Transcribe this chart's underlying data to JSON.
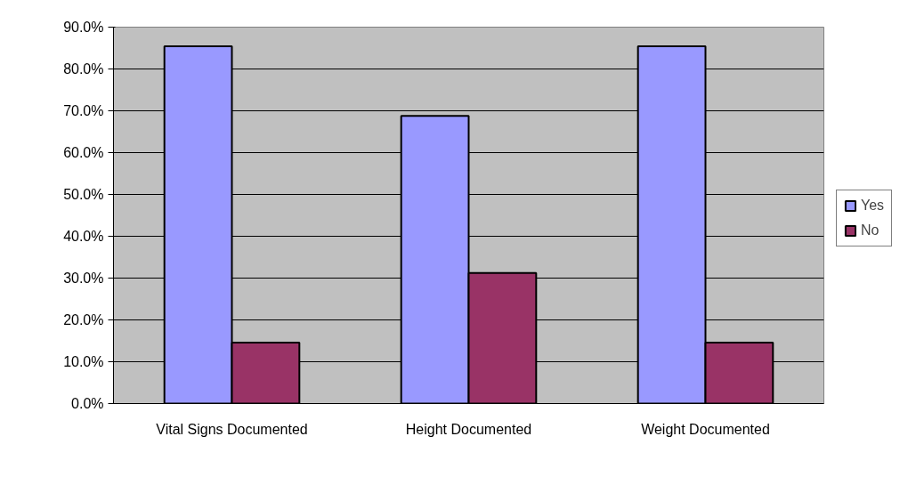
{
  "chart_data": {
    "type": "bar",
    "categories": [
      "Vital Signs Documented",
      "Height Documented",
      "Weight Documented"
    ],
    "series": [
      {
        "name": "Yes",
        "color": "#9999ff",
        "values": [
          85.4,
          68.8,
          85.4
        ]
      },
      {
        "name": "No",
        "color": "#993366",
        "values": [
          14.6,
          31.2,
          14.6
        ]
      }
    ],
    "ylim": [
      0,
      90
    ],
    "yticks": [
      {
        "value": 0,
        "label": "0.0%"
      },
      {
        "value": 10,
        "label": "10.0%"
      },
      {
        "value": 20,
        "label": "20.0%"
      },
      {
        "value": 30,
        "label": "30.0%"
      },
      {
        "value": 40,
        "label": "40.0%"
      },
      {
        "value": 50,
        "label": "50.0%"
      },
      {
        "value": 60,
        "label": "60.0%"
      },
      {
        "value": 70,
        "label": "70.0%"
      },
      {
        "value": 80,
        "label": "80.0%"
      },
      {
        "value": 90,
        "label": "90.0%"
      }
    ],
    "grid": "y",
    "legend": "right"
  }
}
